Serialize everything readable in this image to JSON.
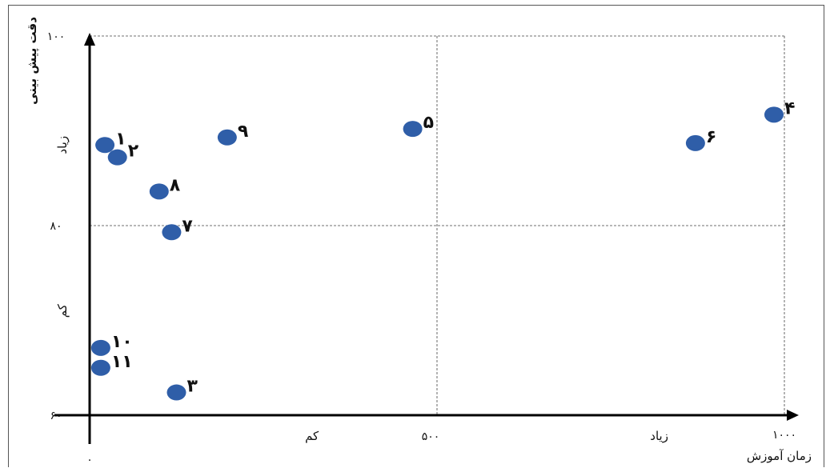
{
  "chart_data": {
    "type": "scatter",
    "title": "",
    "xlabel": "زمان آموزش",
    "ylabel": "دقت پیش بینی",
    "xlim": [
      0,
      1000
    ],
    "ylim": [
      60,
      100
    ],
    "x_ticks": [
      {
        "value": 0,
        "label": "۰"
      },
      {
        "value": 500,
        "label": "۵۰۰"
      },
      {
        "value": 1000,
        "label": "۱۰۰۰"
      }
    ],
    "y_ticks": [
      {
        "value": 60,
        "label": "۶۰"
      },
      {
        "value": 80,
        "label": "۸۰"
      },
      {
        "value": 100,
        "label": "۱۰۰"
      }
    ],
    "x_region_labels": [
      {
        "value": 230,
        "label": "کم"
      },
      {
        "value": 730,
        "label": "زیاد"
      }
    ],
    "y_region_labels": [
      {
        "value": 88.5,
        "label": "زیاد"
      },
      {
        "value": 71,
        "label": "کم"
      }
    ],
    "grid": {
      "x_divider": 500,
      "y_divider": 80
    },
    "point_color": "#2f5ea8",
    "points": [
      {
        "label": "۱",
        "x": 22,
        "y": 88.5
      },
      {
        "label": "۲",
        "x": 40,
        "y": 87.2
      },
      {
        "label": "۳",
        "x": 125,
        "y": 62.4
      },
      {
        "label": "۴",
        "x": 985,
        "y": 91.7
      },
      {
        "label": "۵",
        "x": 465,
        "y": 90.2
      },
      {
        "label": "۶",
        "x": 872,
        "y": 88.7
      },
      {
        "label": "۷",
        "x": 118,
        "y": 79.3
      },
      {
        "label": "۸",
        "x": 100,
        "y": 83.6
      },
      {
        "label": "۹",
        "x": 198,
        "y": 89.3
      },
      {
        "label": "۱۰",
        "x": 16,
        "y": 67.1
      },
      {
        "label": "۱۱",
        "x": 16,
        "y": 65
      }
    ]
  }
}
